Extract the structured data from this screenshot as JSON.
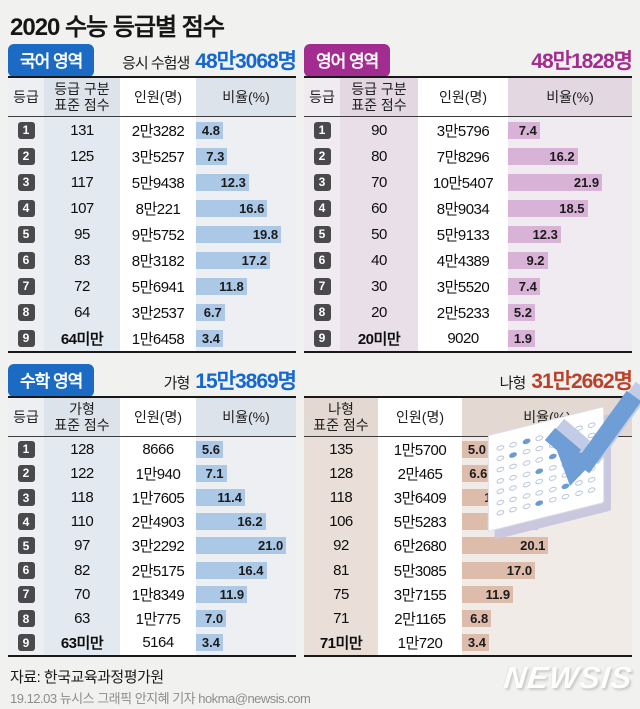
{
  "page": {
    "title": "2020 수능 등급별 점수"
  },
  "colors": {
    "korean_header": "#1b6ac4",
    "english_header": "#a32c90",
    "blue_number": "#1467d2",
    "purple_number": "#a32c90",
    "red_number": "#bc4029",
    "bar_blue": "#abc8e7",
    "bar_purple": "#d9b3d7",
    "bar_tan": "#debcab",
    "grade_badge": "#4a4a4d"
  },
  "chart_data": [
    {
      "id": "korean",
      "type": "bar",
      "section": "국어 영역",
      "count_label": "응시 수험생",
      "total": "48만3068명",
      "headers": {
        "grade": "등급",
        "score1": "등급 구분",
        "score2": "표준 점수",
        "count": "인원(명)",
        "ratio": "비율(%)"
      },
      "unit": "%",
      "xlim": [
        0,
        22
      ],
      "rows": [
        {
          "grade": "1",
          "score": "131",
          "count": "2만3282",
          "pct": "4.8"
        },
        {
          "grade": "2",
          "score": "125",
          "count": "3만5257",
          "pct": "7.3"
        },
        {
          "grade": "3",
          "score": "117",
          "count": "5만9438",
          "pct": "12.3"
        },
        {
          "grade": "4",
          "score": "107",
          "count": "8만221",
          "pct": "16.6"
        },
        {
          "grade": "5",
          "score": "95",
          "count": "9만5752",
          "pct": "19.8"
        },
        {
          "grade": "6",
          "score": "83",
          "count": "8만3182",
          "pct": "17.2"
        },
        {
          "grade": "7",
          "score": "72",
          "count": "5만6941",
          "pct": "11.8"
        },
        {
          "grade": "8",
          "score": "64",
          "count": "3만2537",
          "pct": "6.7"
        },
        {
          "grade": "9",
          "score": "64미만",
          "count": "1만6458",
          "pct": "3.4"
        }
      ]
    },
    {
      "id": "english",
      "type": "bar",
      "section": "영어 영역",
      "total": "48만1828명",
      "headers": {
        "grade": "등급",
        "score1": "등급 구분",
        "score2": "표준 점수",
        "count": "인원(명)",
        "ratio": "비율(%)"
      },
      "unit": "%",
      "xlim": [
        0,
        22
      ],
      "rows": [
        {
          "grade": "1",
          "score": "90",
          "count": "3만5796",
          "pct": "7.4"
        },
        {
          "grade": "2",
          "score": "80",
          "count": "7만8296",
          "pct": "16.2"
        },
        {
          "grade": "3",
          "score": "70",
          "count": "10만5407",
          "pct": "21.9"
        },
        {
          "grade": "4",
          "score": "60",
          "count": "8만9034",
          "pct": "18.5"
        },
        {
          "grade": "5",
          "score": "50",
          "count": "5만9133",
          "pct": "12.3"
        },
        {
          "grade": "6",
          "score": "40",
          "count": "4만4389",
          "pct": "9.2"
        },
        {
          "grade": "7",
          "score": "30",
          "count": "3만5520",
          "pct": "7.4"
        },
        {
          "grade": "8",
          "score": "20",
          "count": "2만5233",
          "pct": "5.2"
        },
        {
          "grade": "9",
          "score": "20미만",
          "count": "9020",
          "pct": "1.9"
        }
      ]
    },
    {
      "id": "math_ga",
      "type": "bar",
      "section": "수학 영역",
      "count_label": "가형",
      "total": "15만3869명",
      "headers": {
        "grade": "등급",
        "score1": "가형",
        "score2": "표준 점수",
        "count": "인원(명)",
        "ratio": "비율(%)"
      },
      "unit": "%",
      "xlim": [
        0,
        22
      ],
      "rows": [
        {
          "grade": "1",
          "score": "128",
          "count": "8666",
          "pct": "5.6"
        },
        {
          "grade": "2",
          "score": "122",
          "count": "1만940",
          "pct": "7.1"
        },
        {
          "grade": "3",
          "score": "118",
          "count": "1만7605",
          "pct": "11.4"
        },
        {
          "grade": "4",
          "score": "110",
          "count": "2만4903",
          "pct": "16.2"
        },
        {
          "grade": "5",
          "score": "97",
          "count": "3만2292",
          "pct": "21.0"
        },
        {
          "grade": "6",
          "score": "82",
          "count": "2만5175",
          "pct": "16.4"
        },
        {
          "grade": "7",
          "score": "70",
          "count": "1만8349",
          "pct": "11.9"
        },
        {
          "grade": "8",
          "score": "63",
          "count": "1만775",
          "pct": "7.0"
        },
        {
          "grade": "9",
          "score": "63미만",
          "count": "5164",
          "pct": "3.4"
        }
      ]
    },
    {
      "id": "math_na",
      "type": "bar",
      "section": "수학 영역",
      "count_label": "나형",
      "total": "31만2662명",
      "headers": {
        "score1": "나형",
        "score2": "표준 점수",
        "count": "인원(명)",
        "ratio": "비율(%)"
      },
      "unit": "%",
      "xlim": [
        0,
        22
      ],
      "rows": [
        {
          "score": "135",
          "count": "1만5700",
          "pct": "5.0"
        },
        {
          "score": "128",
          "count": "2만465",
          "pct": "6.6"
        },
        {
          "score": "118",
          "count": "3만6409",
          "pct": "11.6"
        },
        {
          "score": "106",
          "count": "5만5283",
          "pct": "17.7"
        },
        {
          "score": "92",
          "count": "6만2680",
          "pct": "20.1"
        },
        {
          "score": "81",
          "count": "5만3085",
          "pct": "17.0"
        },
        {
          "score": "75",
          "count": "3만7155",
          "pct": "11.9"
        },
        {
          "score": "71",
          "count": "2만1165",
          "pct": "6.8"
        },
        {
          "score": "71미만",
          "count": "1만720",
          "pct": "3.4"
        }
      ]
    }
  ],
  "illustration": {
    "name": "omr-answer-sheet-with-check"
  },
  "footer": {
    "source": "자료: 한국교육과정평가원",
    "credit": "19.12.03 뉴시스 그래픽 안지혜 기자 hokma@newsis.com",
    "logo": "NEWSIS"
  }
}
